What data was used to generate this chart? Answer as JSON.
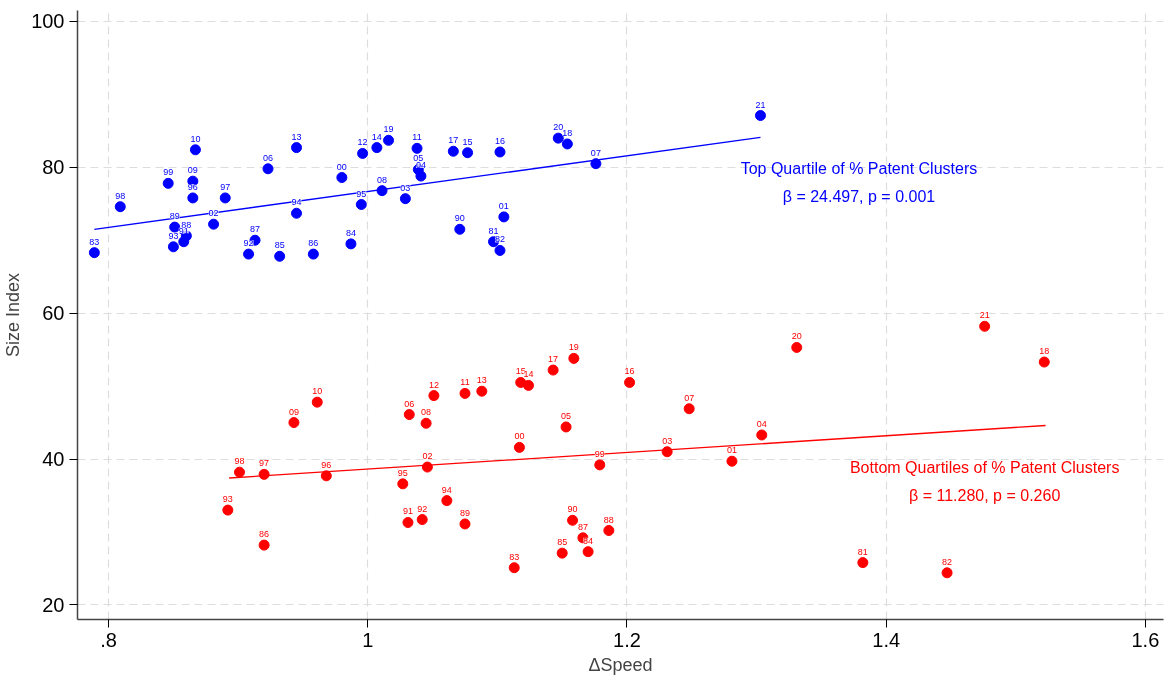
{
  "chart_data": {
    "type": "scatter",
    "xlabel": "ΔSpeed",
    "ylabel": "Size Index",
    "xlim": [
      0.776,
      1.614
    ],
    "ylim": [
      18,
      101.5
    ],
    "xticks": [
      {
        "value": 0.8,
        "label": ".8"
      },
      1,
      1.2,
      1.4,
      1.6
    ],
    "yticks": [
      20,
      40,
      60,
      80,
      100
    ],
    "grid": true,
    "marker": "circle",
    "series": [
      {
        "name": "Top Quartile of % Patent Clusters",
        "color": "#0000ff",
        "x": [
          0.789,
          0.809,
          0.846,
          0.867,
          0.865,
          0.865,
          0.89,
          0.851,
          0.85,
          0.86,
          0.858,
          0.881,
          0.913,
          0.908,
          0.932,
          0.958,
          0.923,
          0.945,
          0.945,
          0.98,
          0.987,
          0.995,
          0.996,
          1.007,
          1.016,
          1.011,
          1.029,
          1.038,
          1.039,
          1.041,
          1.066,
          1.077,
          1.102,
          1.147,
          1.154,
          1.176,
          1.303,
          1.071,
          1.105,
          1.097,
          1.102
        ],
        "values": [
          68.3,
          74.6,
          77.8,
          82.4,
          78.1,
          75.8,
          75.8,
          71.8,
          69.1,
          70.6,
          69.8,
          72.2,
          70.0,
          68.1,
          67.8,
          68.1,
          79.8,
          82.7,
          73.7,
          78.6,
          69.5,
          74.9,
          81.9,
          82.7,
          83.7,
          76.8,
          75.7,
          82.6,
          79.7,
          78.8,
          82.2,
          82.0,
          82.1,
          84.0,
          83.2,
          80.5,
          87.1,
          71.5,
          73.2,
          69.8,
          68.6
        ]
      },
      {
        "name": "Bottom Quartiles of % Patent Clusters",
        "color": "#ff0000",
        "x": [
          0.961,
          0.943,
          0.901,
          0.92,
          0.968,
          0.892,
          0.92,
          1.032,
          1.045,
          1.051,
          1.075,
          1.088,
          1.118,
          1.124,
          1.143,
          1.117,
          1.046,
          1.027,
          1.061,
          1.031,
          1.042,
          1.075,
          1.113,
          1.159,
          1.202,
          1.248,
          1.153,
          1.304,
          1.231,
          1.179,
          1.281,
          1.331,
          1.158,
          1.166,
          1.17,
          1.186,
          1.15,
          1.382,
          1.476,
          1.522,
          1.447
        ],
        "values": [
          47.8,
          45.0,
          38.2,
          37.9,
          37.7,
          33.0,
          28.2,
          46.1,
          44.9,
          48.7,
          49.0,
          49.3,
          50.5,
          50.1,
          52.2,
          41.6,
          38.9,
          36.6,
          34.3,
          31.3,
          31.7,
          31.1,
          25.1,
          53.8,
          50.5,
          46.9,
          44.4,
          43.3,
          41.0,
          39.2,
          39.7,
          55.3,
          31.6,
          29.2,
          27.3,
          30.2,
          27.1,
          25.8,
          58.2,
          53.3,
          24.4
        ]
      },
      {
        "type": "line",
        "marker": "none",
        "color": "#0000ff",
        "x": [
          0.789,
          1.303
        ],
        "values": [
          71.5,
          84.1
        ]
      },
      {
        "type": "line",
        "marker": "none",
        "color": "#ff0000",
        "x": [
          0.893,
          1.523
        ],
        "values": [
          37.4,
          44.6
        ]
      }
    ],
    "annotations": [
      "β = 24.497, p = 0.001",
      "β = 11.280, p = 0.260",
      {
        "text": "83",
        "x": 0.789,
        "y": 68.3
      },
      {
        "text": "98",
        "x": 0.809,
        "y": 74.6
      },
      {
        "text": "99",
        "x": 0.846,
        "y": 77.8
      },
      {
        "text": "10",
        "x": 0.867,
        "y": 82.4
      },
      {
        "text": "09",
        "x": 0.865,
        "y": 78.1
      },
      {
        "text": "96",
        "x": 0.865,
        "y": 75.8
      },
      {
        "text": "97",
        "x": 0.89,
        "y": 75.8
      },
      {
        "text": "89",
        "x": 0.851,
        "y": 71.8
      },
      {
        "text": "93",
        "x": 0.85,
        "y": 69.1
      },
      {
        "text": "88",
        "x": 0.86,
        "y": 70.6
      },
      {
        "text": "91",
        "x": 0.858,
        "y": 69.8
      },
      {
        "text": "02",
        "x": 0.881,
        "y": 72.2
      },
      {
        "text": "87",
        "x": 0.913,
        "y": 70.0
      },
      {
        "text": "92",
        "x": 0.908,
        "y": 68.1
      },
      {
        "text": "85",
        "x": 0.932,
        "y": 67.8
      },
      {
        "text": "86",
        "x": 0.958,
        "y": 68.1
      },
      {
        "text": "06",
        "x": 0.923,
        "y": 79.8
      },
      {
        "text": "13",
        "x": 0.945,
        "y": 82.7
      },
      {
        "text": "94",
        "x": 0.945,
        "y": 73.7
      },
      {
        "text": "00",
        "x": 0.98,
        "y": 78.6
      },
      {
        "text": "84",
        "x": 0.987,
        "y": 69.5
      },
      {
        "text": "95",
        "x": 0.995,
        "y": 74.9
      },
      {
        "text": "12",
        "x": 0.996,
        "y": 81.9
      },
      {
        "text": "14",
        "x": 1.007,
        "y": 82.7
      },
      {
        "text": "19",
        "x": 1.016,
        "y": 83.7
      },
      {
        "text": "08",
        "x": 1.011,
        "y": 76.8
      },
      {
        "text": "03",
        "x": 1.029,
        "y": 75.7
      },
      {
        "text": "11",
        "x": 1.038,
        "y": 82.6
      },
      {
        "text": "05",
        "x": 1.039,
        "y": 79.7
      },
      {
        "text": "04",
        "x": 1.041,
        "y": 78.8
      },
      {
        "text": "17",
        "x": 1.066,
        "y": 82.2
      },
      {
        "text": "15",
        "x": 1.077,
        "y": 82.0
      },
      {
        "text": "16",
        "x": 1.102,
        "y": 82.1
      },
      {
        "text": "20",
        "x": 1.147,
        "y": 84.0
      },
      {
        "text": "18",
        "x": 1.154,
        "y": 83.2
      },
      {
        "text": "07",
        "x": 1.176,
        "y": 80.5
      },
      {
        "text": "21",
        "x": 1.303,
        "y": 87.1
      },
      {
        "text": "90",
        "x": 1.071,
        "y": 71.5
      },
      {
        "text": "01",
        "x": 1.105,
        "y": 73.2
      },
      {
        "text": "81",
        "x": 1.097,
        "y": 69.8
      },
      {
        "text": "82",
        "x": 1.102,
        "y": 68.6
      },
      {
        "text": "10",
        "x": 0.961,
        "y": 47.8
      },
      {
        "text": "09",
        "x": 0.943,
        "y": 45.0
      },
      {
        "text": "98",
        "x": 0.901,
        "y": 38.2
      },
      {
        "text": "97",
        "x": 0.92,
        "y": 37.9
      },
      {
        "text": "96",
        "x": 0.968,
        "y": 37.7
      },
      {
        "text": "93",
        "x": 0.892,
        "y": 33.0
      },
      {
        "text": "86",
        "x": 0.92,
        "y": 28.2
      },
      {
        "text": "06",
        "x": 1.032,
        "y": 46.1
      },
      {
        "text": "08",
        "x": 1.045,
        "y": 44.9
      },
      {
        "text": "12",
        "x": 1.051,
        "y": 48.7
      },
      {
        "text": "11",
        "x": 1.075,
        "y": 49.0
      },
      {
        "text": "13",
        "x": 1.088,
        "y": 49.3
      },
      {
        "text": "15",
        "x": 1.118,
        "y": 50.5
      },
      {
        "text": "14",
        "x": 1.124,
        "y": 50.1
      },
      {
        "text": "17",
        "x": 1.143,
        "y": 52.2
      },
      {
        "text": "00",
        "x": 1.117,
        "y": 41.6
      },
      {
        "text": "02",
        "x": 1.046,
        "y": 38.9
      },
      {
        "text": "95",
        "x": 1.027,
        "y": 36.6
      },
      {
        "text": "94",
        "x": 1.061,
        "y": 34.3
      },
      {
        "text": "91",
        "x": 1.031,
        "y": 31.3
      },
      {
        "text": "92",
        "x": 1.042,
        "y": 31.7
      },
      {
        "text": "89",
        "x": 1.075,
        "y": 31.1
      },
      {
        "text": "83",
        "x": 1.113,
        "y": 25.1
      },
      {
        "text": "19",
        "x": 1.159,
        "y": 53.8
      },
      {
        "text": "16",
        "x": 1.202,
        "y": 50.5
      },
      {
        "text": "07",
        "x": 1.248,
        "y": 46.9
      },
      {
        "text": "05",
        "x": 1.153,
        "y": 44.4
      },
      {
        "text": "04",
        "x": 1.304,
        "y": 43.3
      },
      {
        "text": "03",
        "x": 1.231,
        "y": 41.0
      },
      {
        "text": "99",
        "x": 1.179,
        "y": 39.2
      },
      {
        "text": "01",
        "x": 1.281,
        "y": 39.7
      },
      {
        "text": "20",
        "x": 1.331,
        "y": 55.3
      },
      {
        "text": "90",
        "x": 1.158,
        "y": 31.6
      },
      {
        "text": "87",
        "x": 1.166,
        "y": 29.2
      },
      {
        "text": "84",
        "x": 1.17,
        "y": 27.3
      },
      {
        "text": "88",
        "x": 1.186,
        "y": 30.2
      },
      {
        "text": "85",
        "x": 1.15,
        "y": 27.1
      },
      {
        "text": "81",
        "x": 1.382,
        "y": 25.8
      },
      {
        "text": "21",
        "x": 1.476,
        "y": 58.2
      },
      {
        "text": "18",
        "x": 1.522,
        "y": 53.3
      },
      {
        "text": "82",
        "x": 1.447,
        "y": 24.4
      }
    ]
  }
}
